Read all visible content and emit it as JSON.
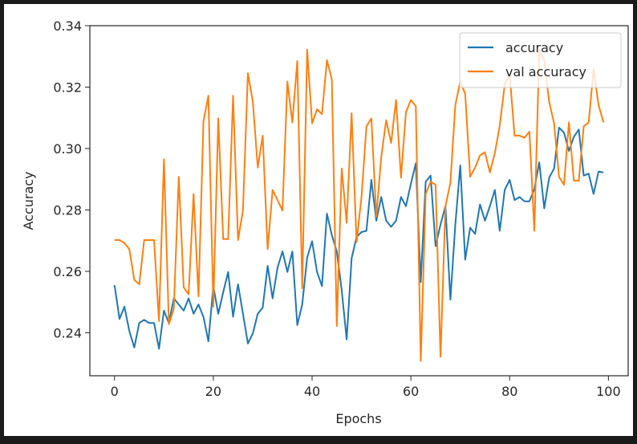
{
  "chart_data": {
    "type": "line",
    "title": "",
    "xlabel": "Epochs",
    "ylabel": "Accuracy",
    "xlim": [
      -5,
      104
    ],
    "ylim": [
      0.226,
      0.34
    ],
    "x_ticks": [
      0,
      20,
      40,
      60,
      80,
      100
    ],
    "y_ticks": [
      0.24,
      0.26,
      0.28,
      0.3,
      0.32,
      0.34
    ],
    "y_tick_labels": [
      "0.24",
      "0.26",
      "0.28",
      "0.30",
      "0.32",
      "0.34"
    ],
    "grid": false,
    "legend_position": "top-right",
    "series": [
      {
        "name": "accuracy",
        "color": "#1f77b4",
        "values": [
          0.2555,
          0.2445,
          0.2485,
          0.2405,
          0.2352,
          0.2432,
          0.2442,
          0.2432,
          0.2432,
          0.2348,
          0.2472,
          0.2432,
          0.2512,
          0.2492,
          0.2472,
          0.2512,
          0.2462,
          0.2492,
          0.2452,
          0.2372,
          0.2552,
          0.2462,
          0.2532,
          0.2598,
          0.2452,
          0.2558,
          0.2462,
          0.2365,
          0.2398,
          0.2462,
          0.2482,
          0.2618,
          0.2512,
          0.2612,
          0.2665,
          0.2598,
          0.2665,
          0.2425,
          0.2492,
          0.2645,
          0.2698,
          0.2598,
          0.2552,
          0.2788,
          0.2718,
          0.2665,
          0.2538,
          0.2378,
          0.2642,
          0.2712,
          0.2728,
          0.2732,
          0.2898,
          0.2765,
          0.2842,
          0.2765,
          0.2745,
          0.2765,
          0.2842,
          0.2812,
          0.2885,
          0.2952,
          0.2565,
          0.2892,
          0.2912,
          0.2682,
          0.2752,
          0.2812,
          0.2508,
          0.2752,
          0.2945,
          0.2638,
          0.2742,
          0.2722,
          0.2818,
          0.2765,
          0.2812,
          0.2865,
          0.2732,
          0.2865,
          0.2898,
          0.2832,
          0.2842,
          0.2828,
          0.2828,
          0.2868,
          0.2955,
          0.2805,
          0.2905,
          0.2935,
          0.3068,
          0.3052,
          0.2992,
          0.3038,
          0.3062,
          0.2912,
          0.2918,
          0.2852,
          0.2925,
          0.2922
        ]
      },
      {
        "name": "val accuracy",
        "color": "#ff7f0e",
        "values": [
          0.2702,
          0.2702,
          0.2692,
          0.2672,
          0.2572,
          0.2558,
          0.2702,
          0.2702,
          0.2702,
          0.2438,
          0.2965,
          0.2428,
          0.2478,
          0.2908,
          0.2548,
          0.2525,
          0.2852,
          0.2518,
          0.3088,
          0.3172,
          0.2485,
          0.3098,
          0.2705,
          0.2705,
          0.3172,
          0.2702,
          0.2798,
          0.3245,
          0.3152,
          0.2938,
          0.3042,
          0.2672,
          0.2865,
          0.2832,
          0.2798,
          0.3218,
          0.3085,
          0.3285,
          0.2545,
          0.3322,
          0.3082,
          0.3128,
          0.3112,
          0.3288,
          0.3225,
          0.2422,
          0.2935,
          0.2758,
          0.3115,
          0.2695,
          0.2842,
          0.3072,
          0.3098,
          0.2778,
          0.2972,
          0.3092,
          0.3018,
          0.3158,
          0.2905,
          0.3118,
          0.3158,
          0.3138,
          0.2308,
          0.2852,
          0.2892,
          0.2882,
          0.2322,
          0.2812,
          0.2888,
          0.3142,
          0.3218,
          0.3178,
          0.2908,
          0.2938,
          0.2978,
          0.2988,
          0.2922,
          0.2985,
          0.3075,
          0.3208,
          0.3242,
          0.3042,
          0.3042,
          0.3035,
          0.3055,
          0.2732,
          0.3322,
          0.3288,
          0.3152,
          0.3082,
          0.2908,
          0.2882,
          0.3085,
          0.2895,
          0.2895,
          0.3072,
          0.3085,
          0.3258,
          0.3142,
          0.3085
        ]
      }
    ]
  }
}
